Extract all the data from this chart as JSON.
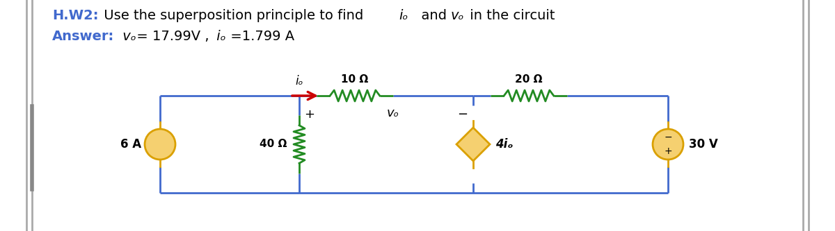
{
  "bg_color": "#ffffff",
  "wire_color": "#4169CD",
  "resistor_color": "#228B22",
  "source_color": "#DAA000",
  "hw_color": "#4169CD",
  "arrow_color": "#CC0000",
  "figsize": [
    12.0,
    3.33
  ],
  "dpi": 100,
  "title_line1_hw": "H.W2:",
  "title_line1_rest": " Use the superposition principle to find ",
  "title_line1_io": "iₒ",
  "title_line1_and": "  and ",
  "title_line1_vo": "vₒ",
  "title_line1_end": " in the circuit",
  "title_line2_ans": "Answer:",
  "title_line2_vo": " vₒ",
  "title_line2_eq": " = 17.99V ,",
  "title_line2_io": " iₒ",
  "title_line2_end": " =1.799 A",
  "res10_label": "10 Ω",
  "res20_label": "20 Ω",
  "res40_label": "40 Ω",
  "src6_label": "6 A",
  "dep_label": "4iₒ",
  "vsrc_label": "30 V",
  "vo_label": "vₒ",
  "io_label": "iₒ"
}
